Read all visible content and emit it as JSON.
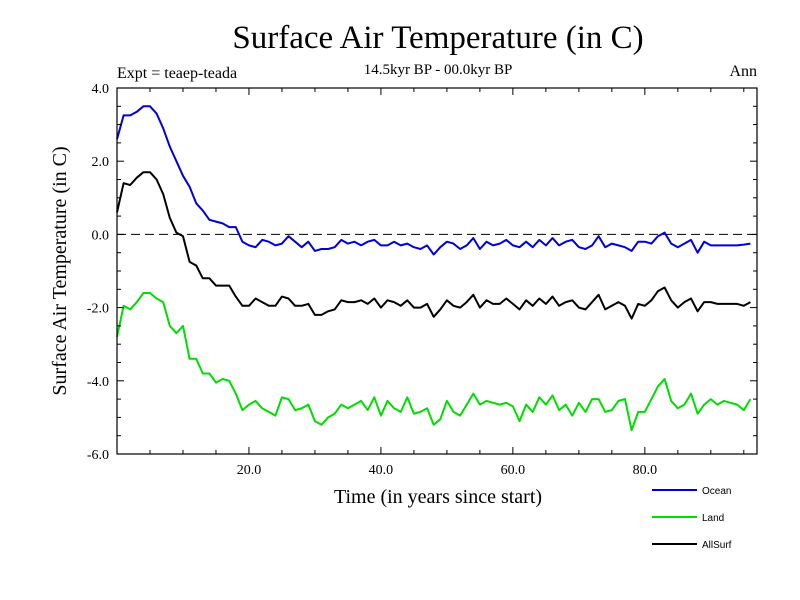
{
  "chart_data": {
    "type": "line",
    "title": "Surface Air Temperature (in C)",
    "subtitle": "14.5kyr BP - 00.0kyr BP",
    "expt_label": "Expt = teaep-teada",
    "season_label": "Ann",
    "xlabel": "Time (in years since start)",
    "ylabel": "Surface Air Temperature (in C)",
    "xlim": [
      0,
      97
    ],
    "ylim": [
      -6,
      4
    ],
    "x_ticks": [
      20,
      40,
      60,
      80
    ],
    "x_tick_labels": [
      "20.0",
      "40.0",
      "60.0",
      "80.0"
    ],
    "y_ticks": [
      4,
      2,
      0,
      -2,
      -4,
      -6
    ],
    "y_tick_labels": [
      "4.0",
      "2.0",
      "0.0",
      "-2.0",
      "-4.0",
      "-6.0"
    ],
    "zero_line": "dashed",
    "legend_position": "bottom-right",
    "series": [
      {
        "name": "Ocean",
        "color": "#0000dd",
        "values": [
          2.6,
          3.25,
          3.25,
          3.35,
          3.5,
          3.5,
          3.3,
          2.9,
          2.4,
          2.0,
          1.6,
          1.3,
          0.85,
          0.65,
          0.4,
          0.35,
          0.3,
          0.2,
          0.2,
          -0.2,
          -0.3,
          -0.35,
          -0.15,
          -0.2,
          -0.3,
          -0.25,
          -0.05,
          -0.2,
          -0.35,
          -0.2,
          -0.45,
          -0.4,
          -0.4,
          -0.35,
          -0.15,
          -0.25,
          -0.2,
          -0.3,
          -0.2,
          -0.15,
          -0.3,
          -0.3,
          -0.2,
          -0.3,
          -0.25,
          -0.35,
          -0.4,
          -0.3,
          -0.55,
          -0.35,
          -0.2,
          -0.25,
          -0.4,
          -0.3,
          -0.1,
          -0.4,
          -0.2,
          -0.3,
          -0.25,
          -0.15,
          -0.3,
          -0.35,
          -0.2,
          -0.35,
          -0.15,
          -0.3,
          -0.1,
          -0.3,
          -0.2,
          -0.15,
          -0.35,
          -0.4,
          -0.3,
          -0.05,
          -0.35,
          -0.25,
          -0.3,
          -0.35,
          -0.45,
          -0.2,
          -0.2,
          -0.25,
          -0.05,
          0.05,
          -0.25,
          -0.35,
          -0.25,
          -0.15,
          -0.5,
          -0.2,
          -0.3,
          -0.3,
          -0.3,
          -0.3,
          -0.3,
          -0.28,
          -0.25
        ]
      },
      {
        "name": "Land",
        "color": "#00dd00",
        "values": [
          -2.8,
          -1.95,
          -2.05,
          -1.85,
          -1.6,
          -1.6,
          -1.75,
          -1.85,
          -2.5,
          -2.7,
          -2.5,
          -3.4,
          -3.4,
          -3.8,
          -3.8,
          -4.05,
          -3.95,
          -4.0,
          -4.35,
          -4.8,
          -4.65,
          -4.55,
          -4.75,
          -4.85,
          -4.95,
          -4.45,
          -4.5,
          -4.8,
          -4.75,
          -4.65,
          -5.1,
          -5.2,
          -5.0,
          -4.9,
          -4.65,
          -4.75,
          -4.65,
          -4.55,
          -4.8,
          -4.45,
          -4.95,
          -4.55,
          -4.75,
          -4.85,
          -4.45,
          -4.9,
          -4.85,
          -4.75,
          -5.2,
          -5.05,
          -4.55,
          -4.85,
          -4.95,
          -4.65,
          -4.35,
          -4.65,
          -4.55,
          -4.6,
          -4.65,
          -4.6,
          -4.7,
          -5.1,
          -4.65,
          -4.85,
          -4.45,
          -4.65,
          -4.4,
          -4.8,
          -4.65,
          -4.95,
          -4.6,
          -4.85,
          -4.5,
          -4.5,
          -4.85,
          -4.8,
          -4.55,
          -4.5,
          -5.35,
          -4.85,
          -4.85,
          -4.5,
          -4.15,
          -3.95,
          -4.55,
          -4.75,
          -4.65,
          -4.35,
          -4.9,
          -4.65,
          -4.5,
          -4.65,
          -4.55,
          -4.6,
          -4.65,
          -4.8,
          -4.5
        ]
      },
      {
        "name": "AllSurf",
        "color": "#000000",
        "values": [
          0.6,
          1.4,
          1.35,
          1.55,
          1.7,
          1.7,
          1.5,
          1.1,
          0.45,
          0.05,
          -0.05,
          -0.75,
          -0.85,
          -1.2,
          -1.2,
          -1.4,
          -1.4,
          -1.4,
          -1.7,
          -1.95,
          -1.95,
          -1.75,
          -1.85,
          -1.95,
          -1.95,
          -1.7,
          -1.75,
          -1.95,
          -1.95,
          -1.9,
          -2.2,
          -2.2,
          -2.1,
          -2.05,
          -1.8,
          -1.85,
          -1.85,
          -1.8,
          -1.9,
          -1.75,
          -2.0,
          -1.8,
          -1.85,
          -1.95,
          -1.8,
          -2.0,
          -2.0,
          -1.9,
          -2.25,
          -2.05,
          -1.8,
          -1.95,
          -2.0,
          -1.85,
          -1.65,
          -2.0,
          -1.8,
          -1.9,
          -1.9,
          -1.75,
          -1.9,
          -2.05,
          -1.8,
          -1.95,
          -1.75,
          -1.9,
          -1.7,
          -1.95,
          -1.85,
          -1.8,
          -2.0,
          -2.05,
          -1.85,
          -1.65,
          -2.05,
          -1.95,
          -1.85,
          -1.95,
          -2.3,
          -1.9,
          -1.95,
          -1.8,
          -1.55,
          -1.45,
          -1.8,
          -2.0,
          -1.85,
          -1.75,
          -2.1,
          -1.85,
          -1.85,
          -1.9,
          -1.9,
          -1.9,
          -1.9,
          -1.95,
          -1.85
        ]
      }
    ]
  }
}
